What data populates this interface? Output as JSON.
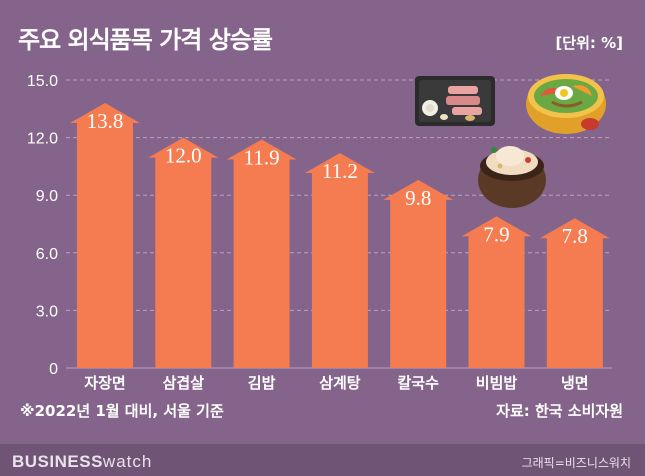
{
  "header": {
    "title": "주요 외식품목 가격 상승률",
    "unit": "[단위: %]"
  },
  "chart_data": {
    "type": "bar",
    "categories": [
      "자장면",
      "삼겹살",
      "김밥",
      "삼계탕",
      "칼국수",
      "비빔밥",
      "냉면"
    ],
    "values": [
      13.8,
      12.0,
      11.9,
      11.2,
      9.8,
      7.9,
      7.8
    ],
    "value_labels": [
      "13.8",
      "12.0",
      "11.9",
      "11.2",
      "9.8",
      "7.9",
      "7.8"
    ],
    "yticks": [
      "0",
      "3.0",
      "6.0",
      "9.0",
      "12.0",
      "15.0"
    ],
    "ylim": [
      0,
      15
    ],
    "grid": "dashed horizontal",
    "bar_style": "upward arrow",
    "colors": {
      "bar": "#f47c50",
      "background": "#84648a",
      "grid": "#b8a3bd"
    }
  },
  "footer": {
    "note": "※2022년 1월 대비, 서울 기준",
    "source": "자료: 한국 소비자원",
    "brand_bold": "BUSINESS",
    "brand_light": "watch",
    "credit": "그래픽=비즈니스워치"
  },
  "illustrations": [
    "grill-meat-icon",
    "bibimbap-bowl-icon",
    "samgyetang-pot-icon"
  ]
}
